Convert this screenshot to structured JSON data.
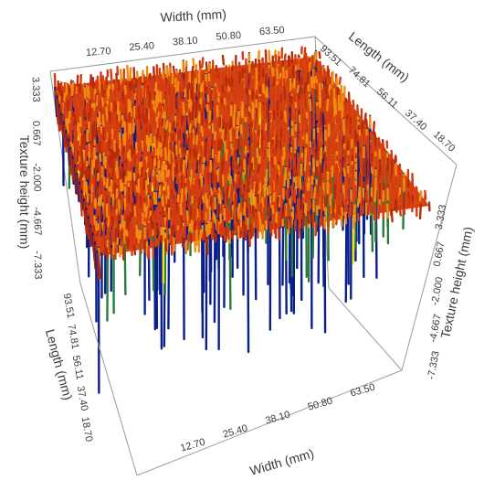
{
  "chart_data": {
    "type": "surface",
    "title": "",
    "axes": {
      "x": {
        "label": "Width (mm)",
        "ticks": [
          "12.70",
          "25.40",
          "38.10",
          "50.80",
          "63.50"
        ],
        "tick_values": [
          12.7,
          25.4,
          38.1,
          50.8,
          63.5
        ],
        "range": [
          0,
          76.2
        ]
      },
      "y": {
        "label": "Length (mm)",
        "ticks": [
          "18.70",
          "37.40",
          "56.11",
          "74.81",
          "93.51"
        ],
        "tick_values": [
          18.7,
          37.4,
          56.11,
          74.81,
          93.51
        ],
        "range": [
          0,
          112.2
        ]
      },
      "z": {
        "label": "Texture height (mm)",
        "ticks": [
          "-7.333",
          "-4.667",
          "-2.000",
          "0.667",
          "3.333"
        ],
        "tick_values": [
          -7.333,
          -4.667,
          -2.0,
          0.667,
          3.333
        ],
        "range": [
          -10,
          4.5
        ]
      }
    },
    "colormap": [
      "#0a1f8a",
      "#2a7a3a",
      "#f2e21a",
      "#f28a10",
      "#d63a10",
      "#b82a0a"
    ],
    "grid": false,
    "legend": "none"
  }
}
